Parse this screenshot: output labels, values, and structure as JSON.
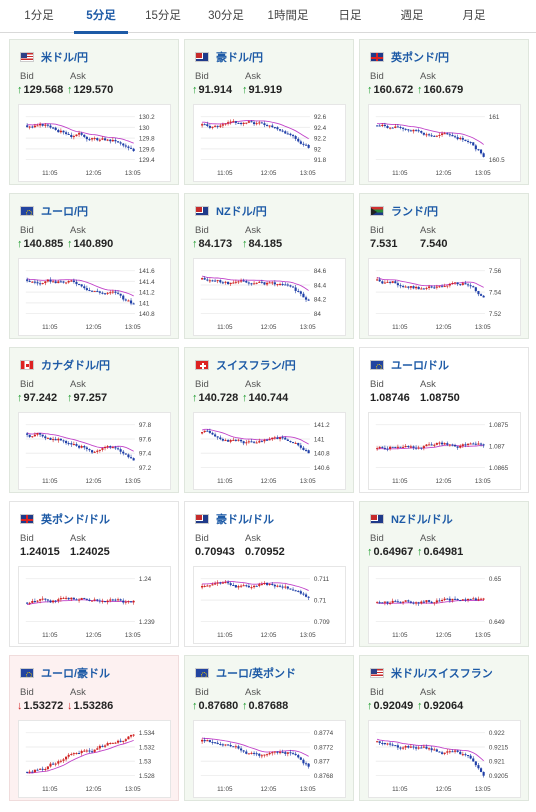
{
  "tabs": [
    {
      "label": "1分足",
      "active": false
    },
    {
      "label": "5分足",
      "active": true
    },
    {
      "label": "15分足",
      "active": false
    },
    {
      "label": "30分足",
      "active": false
    },
    {
      "label": "1時間足",
      "active": false
    },
    {
      "label": "日足",
      "active": false
    },
    {
      "label": "週足",
      "active": false
    },
    {
      "label": "月足",
      "active": false
    }
  ],
  "labels": {
    "bid": "Bid",
    "ask": "Ask"
  },
  "colors": {
    "up_arrow": "#1a9a2a",
    "down_arrow": "#d02222",
    "bull_candle": "#d02222",
    "bear_candle": "#1f3fa8",
    "moving_average": "#c040c8",
    "title_link": "#1d5aa6"
  },
  "cards": [
    {
      "pair": "米ドル/円",
      "flag": "us",
      "state": "up",
      "bid": "129.568",
      "ask": "129.570",
      "dir": "up",
      "chart": {
        "trend": "down",
        "seed": 3,
        "yticks": [
          "130.2",
          "130",
          "129.8",
          "129.6",
          "129.4"
        ],
        "xticks": [
          "11:05",
          "12:05",
          "13:05"
        ]
      }
    },
    {
      "pair": "豪ドル/円",
      "flag": "au",
      "state": "up",
      "bid": "91.914",
      "ask": "91.919",
      "dir": "up",
      "chart": {
        "trend": "down",
        "seed": 5,
        "yticks": [
          "92.6",
          "92.4",
          "92.2",
          "92",
          "91.8"
        ],
        "xticks": [
          "11:05",
          "12:05",
          "13:05"
        ]
      }
    },
    {
      "pair": "英ポンド/円",
      "flag": "gb",
      "state": "up",
      "bid": "160.672",
      "ask": "160.679",
      "dir": "up",
      "chart": {
        "trend": "down",
        "seed": 7,
        "yticks": [
          "161",
          "160.5"
        ],
        "xticks": [
          "11:05",
          "12:05",
          "13:05"
        ]
      }
    },
    {
      "pair": "ユーロ/円",
      "flag": "eu",
      "state": "up",
      "bid": "140.885",
      "ask": "140.890",
      "dir": "up",
      "chart": {
        "trend": "down",
        "seed": 9,
        "yticks": [
          "141.6",
          "141.4",
          "141.2",
          "141",
          "140.8"
        ],
        "xticks": [
          "11:05",
          "12:05",
          "13:05"
        ]
      }
    },
    {
      "pair": "NZドル/円",
      "flag": "nz",
      "state": "up",
      "bid": "84.173",
      "ask": "84.185",
      "dir": "up",
      "chart": {
        "trend": "down",
        "seed": 11,
        "yticks": [
          "84.6",
          "84.4",
          "84.2",
          "84"
        ],
        "xticks": [
          "11:05",
          "12:05",
          "13:05"
        ]
      }
    },
    {
      "pair": "ランド/円",
      "flag": "za",
      "state": "up",
      "bid": "7.531",
      "ask": "7.540",
      "dir": "none",
      "chart": {
        "trend": "down",
        "seed": 13,
        "yticks": [
          "7.56",
          "7.54",
          "7.52"
        ],
        "xticks": [
          "11:05",
          "12:05",
          "13:05"
        ]
      }
    },
    {
      "pair": "カナダドル/円",
      "flag": "ca",
      "state": "up",
      "bid": "97.242",
      "ask": "97.257",
      "dir": "up",
      "chart": {
        "trend": "down",
        "seed": 15,
        "yticks": [
          "97.8",
          "97.6",
          "97.4",
          "97.2"
        ],
        "xticks": [
          "11:05",
          "12:05",
          "13:05"
        ]
      }
    },
    {
      "pair": "スイスフラン/円",
      "flag": "ch",
      "state": "up",
      "bid": "140.728",
      "ask": "140.744",
      "dir": "up",
      "chart": {
        "trend": "down",
        "seed": 17,
        "yticks": [
          "141.2",
          "141",
          "140.8",
          "140.6"
        ],
        "xticks": [
          "11:05",
          "12:05",
          "13:05"
        ]
      }
    },
    {
      "pair": "ユーロ/ドル",
      "flag": "eu",
      "state": "flat",
      "bid": "1.08746",
      "ask": "1.08750",
      "dir": "none",
      "chart": {
        "trend": "flatup",
        "seed": 19,
        "yticks": [
          "1.0875",
          "1.087",
          "1.0865"
        ],
        "xticks": [
          "11:05",
          "12:05",
          "13:05"
        ]
      }
    },
    {
      "pair": "英ポンド/ドル",
      "flag": "gb",
      "state": "flat",
      "bid": "1.24015",
      "ask": "1.24025",
      "dir": "none",
      "chart": {
        "trend": "flat",
        "seed": 21,
        "yticks": [
          "1.24",
          "1.239"
        ],
        "xticks": [
          "11:05",
          "12:05",
          "13:05"
        ]
      }
    },
    {
      "pair": "豪ドル/ドル",
      "flag": "au",
      "state": "flat",
      "bid": "0.70943",
      "ask": "0.70952",
      "dir": "none",
      "chart": {
        "trend": "down",
        "seed": 23,
        "yticks": [
          "0.711",
          "0.71",
          "0.709"
        ],
        "xticks": [
          "11:05",
          "12:05",
          "13:05"
        ]
      }
    },
    {
      "pair": "NZドル/ドル",
      "flag": "nz",
      "state": "up",
      "bid": "0.64967",
      "ask": "0.64981",
      "dir": "up",
      "chart": {
        "trend": "flat",
        "seed": 25,
        "yticks": [
          "0.65",
          "0.649"
        ],
        "xticks": [
          "11:05",
          "12:05",
          "13:05"
        ]
      }
    },
    {
      "pair": "ユーロ/豪ドル",
      "flag": "eu",
      "state": "down",
      "bid": "1.53272",
      "ask": "1.53286",
      "dir": "down",
      "chart": {
        "trend": "up",
        "seed": 27,
        "yticks": [
          "1.534",
          "1.532",
          "1.53",
          "1.528"
        ],
        "xticks": [
          "11:05",
          "12:05",
          "13:05"
        ]
      }
    },
    {
      "pair": "ユーロ/英ポンド",
      "flag": "eu",
      "state": "up",
      "bid": "0.87680",
      "ask": "0.87688",
      "dir": "up",
      "chart": {
        "trend": "down",
        "seed": 29,
        "yticks": [
          "0.8774",
          "0.8772",
          "0.877",
          "0.8768"
        ],
        "xticks": [
          "11:05",
          "12:05",
          "13:05"
        ]
      }
    },
    {
      "pair": "米ドル/スイスフラン",
      "flag": "us",
      "state": "up",
      "bid": "0.92049",
      "ask": "0.92064",
      "dir": "up",
      "chart": {
        "trend": "down",
        "seed": 31,
        "yticks": [
          "0.922",
          "0.9215",
          "0.921",
          "0.9205"
        ],
        "xticks": [
          "11:05",
          "12:05",
          "13:05"
        ]
      }
    }
  ]
}
